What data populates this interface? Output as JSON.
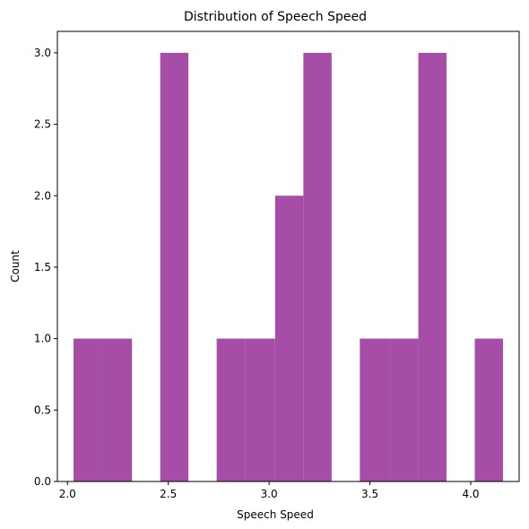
{
  "chart_data": {
    "type": "bar",
    "title": "Distribution of Speech Speed",
    "xlabel": "Speech Speed",
    "ylabel": "Count",
    "xlim": [
      1.95,
      4.24
    ],
    "ylim": [
      0,
      3.15
    ],
    "xticks": [
      2.0,
      2.5,
      3.0,
      3.5,
      4.0
    ],
    "xtick_labels": [
      "2.0",
      "2.5",
      "3.0",
      "3.5",
      "4.0"
    ],
    "yticks": [
      0,
      0.5,
      1.0,
      1.5,
      2.0,
      2.5,
      3.0
    ],
    "ytick_labels": [
      "0.0",
      "0.5",
      "1.0",
      "1.5",
      "2.0",
      "2.5",
      "3.0"
    ],
    "bins": [
      {
        "start": 2.03,
        "end": 2.17,
        "count": 1
      },
      {
        "start": 2.17,
        "end": 2.32,
        "count": 1
      },
      {
        "start": 2.32,
        "end": 2.46,
        "count": 0
      },
      {
        "start": 2.46,
        "end": 2.6,
        "count": 3
      },
      {
        "start": 2.6,
        "end": 2.74,
        "count": 0
      },
      {
        "start": 2.74,
        "end": 2.88,
        "count": 1
      },
      {
        "start": 2.88,
        "end": 3.03,
        "count": 1
      },
      {
        "start": 3.03,
        "end": 3.17,
        "count": 2
      },
      {
        "start": 3.17,
        "end": 3.31,
        "count": 3
      },
      {
        "start": 3.31,
        "end": 3.45,
        "count": 0
      },
      {
        "start": 3.45,
        "end": 3.6,
        "count": 1
      },
      {
        "start": 3.6,
        "end": 3.74,
        "count": 1
      },
      {
        "start": 3.74,
        "end": 3.88,
        "count": 3
      },
      {
        "start": 3.88,
        "end": 4.02,
        "count": 0
      },
      {
        "start": 4.02,
        "end": 4.16,
        "count": 1
      }
    ],
    "bar_color": "#a64ea7",
    "grid": false,
    "legend": false
  }
}
